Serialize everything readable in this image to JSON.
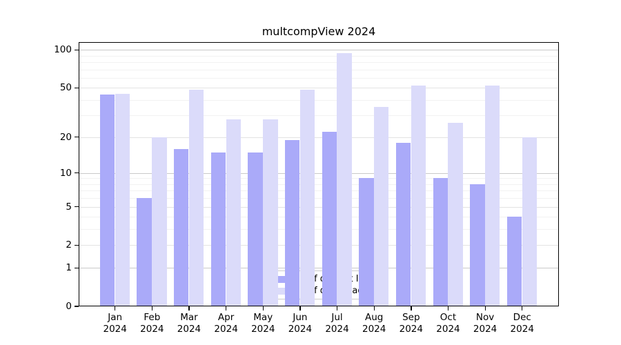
{
  "chart_data": {
    "type": "bar",
    "title": "multcompView 2024",
    "categories": [
      "Jan",
      "Feb",
      "Mar",
      "Apr",
      "May",
      "Jun",
      "Jul",
      "Aug",
      "Sep",
      "Oct",
      "Nov",
      "Dec"
    ],
    "year": "2024",
    "series": [
      {
        "name": "Nb of distinct IPs",
        "color": "#aaaaf9",
        "values": [
          44,
          6,
          16,
          15,
          15,
          19,
          22,
          9,
          18,
          9,
          8,
          4
        ]
      },
      {
        "name": "Nb of downloads",
        "color": "#dbdbfa",
        "values": [
          45,
          20,
          48,
          28,
          28,
          48,
          94,
          35,
          52,
          26,
          52,
          20
        ]
      }
    ],
    "yscale": "log1p",
    "ylim": [
      0,
      115
    ],
    "yticks": [
      0,
      1,
      2,
      5,
      10,
      20,
      50,
      100
    ],
    "yticks_decade": [
      1,
      10,
      100
    ],
    "yticks_minor": [
      3,
      4,
      6,
      7,
      8,
      9,
      30,
      40,
      60,
      70,
      80,
      90
    ],
    "grid": true,
    "legend_position": "bottom-center"
  },
  "grid_colors": {
    "decade": "#c9c9c9",
    "major": "#e3e3e3",
    "minor": "#f2f2f2"
  }
}
